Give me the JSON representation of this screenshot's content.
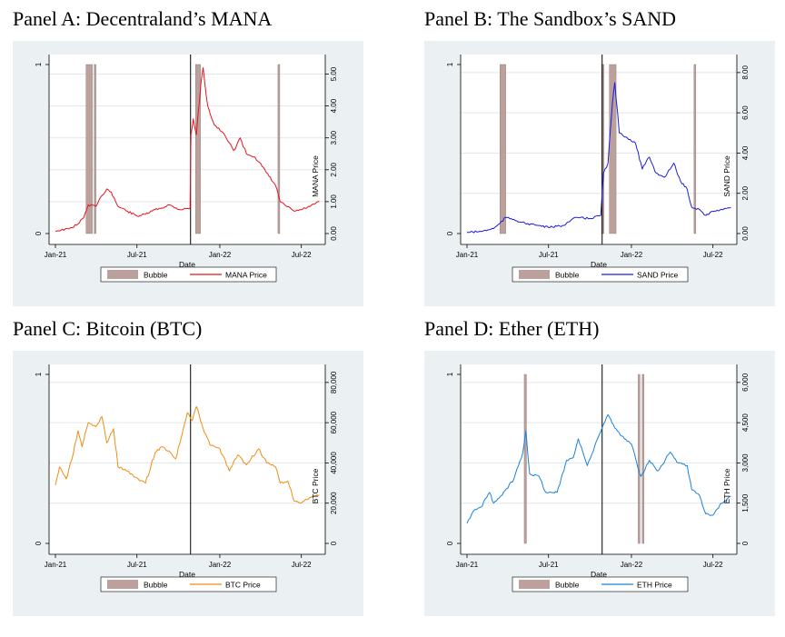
{
  "panels": [
    {
      "id": "A",
      "title": "Panel A: Decentraland’s MANA",
      "chart_data": {
        "type": "line",
        "xlabel": "Date",
        "x_ticks": [
          "Jan-21",
          "Jul-21",
          "Jan-22",
          "Jul-22"
        ],
        "x_range": [
          "2021-01-01",
          "2022-08-15"
        ],
        "left_axis": {
          "ticks": [
            "0",
            "1"
          ],
          "ylim": [
            0,
            1
          ]
        },
        "right_axis": {
          "label": "MANA Price",
          "ticks": [
            "0.00",
            "1.00",
            "2.00",
            "3.00",
            "4.00",
            "5.00"
          ],
          "ylim": [
            0,
            5.3
          ]
        },
        "series": [
          {
            "name": "MANA Price",
            "color": "#e8141c",
            "points": [
              [
                "2021-01-01",
                0.08
              ],
              [
                "2021-02-01",
                0.15
              ],
              [
                "2021-02-20",
                0.3
              ],
              [
                "2021-03-05",
                0.5
              ],
              [
                "2021-03-15",
                0.9
              ],
              [
                "2021-04-01",
                0.85
              ],
              [
                "2021-04-15",
                1.2
              ],
              [
                "2021-04-25",
                1.4
              ],
              [
                "2021-05-05",
                1.3
              ],
              [
                "2021-05-20",
                0.85
              ],
              [
                "2021-06-10",
                0.7
              ],
              [
                "2021-07-01",
                0.55
              ],
              [
                "2021-07-20",
                0.6
              ],
              [
                "2021-08-10",
                0.75
              ],
              [
                "2021-08-25",
                0.8
              ],
              [
                "2021-09-10",
                0.9
              ],
              [
                "2021-10-05",
                0.75
              ],
              [
                "2021-10-27",
                0.8
              ],
              [
                "2021-10-29",
                3.1
              ],
              [
                "2021-11-03",
                3.6
              ],
              [
                "2021-11-10",
                3.1
              ],
              [
                "2021-11-20",
                4.7
              ],
              [
                "2021-11-25",
                5.2
              ],
              [
                "2021-12-05",
                4.0
              ],
              [
                "2021-12-20",
                3.4
              ],
              [
                "2022-01-05",
                3.2
              ],
              [
                "2022-01-15",
                3.0
              ],
              [
                "2022-02-01",
                2.6
              ],
              [
                "2022-02-15",
                3.0
              ],
              [
                "2022-03-01",
                2.5
              ],
              [
                "2022-03-20",
                2.4
              ],
              [
                "2022-04-05",
                2.1
              ],
              [
                "2022-04-20",
                1.8
              ],
              [
                "2022-05-05",
                1.5
              ],
              [
                "2022-05-15",
                1.0
              ],
              [
                "2022-05-25",
                0.9
              ],
              [
                "2022-06-15",
                0.7
              ],
              [
                "2022-07-01",
                0.75
              ],
              [
                "2022-07-20",
                0.85
              ],
              [
                "2022-08-10",
                1.0
              ]
            ]
          }
        ],
        "bubbles": [
          [
            "2021-03-10",
            "2021-03-24"
          ],
          [
            "2021-03-28",
            "2021-03-30"
          ],
          [
            "2021-11-08",
            "2021-11-19"
          ],
          [
            "2022-05-10",
            "2022-05-14"
          ]
        ],
        "vline": "2021-10-28",
        "legend": [
          "Bubble",
          "MANA Price"
        ]
      }
    },
    {
      "id": "B",
      "title": "Panel B: The Sandbox’s SAND",
      "chart_data": {
        "type": "line",
        "xlabel": "Date",
        "x_ticks": [
          "Jan-21",
          "Jul-21",
          "Jan-22",
          "Jul-22"
        ],
        "x_range": [
          "2021-01-01",
          "2022-08-15"
        ],
        "left_axis": {
          "ticks": [
            "0",
            "1"
          ],
          "ylim": [
            0,
            1
          ]
        },
        "right_axis": {
          "label": "SAND Price",
          "ticks": [
            "0.00",
            "2.00",
            "4.00",
            "6.00",
            "8.00"
          ],
          "ylim": [
            0,
            8.4
          ]
        },
        "series": [
          {
            "name": "SAND Price",
            "color": "#1c1ce0",
            "points": [
              [
                "2021-01-01",
                0.06
              ],
              [
                "2021-02-01",
                0.1
              ],
              [
                "2021-03-01",
                0.25
              ],
              [
                "2021-03-15",
                0.5
              ],
              [
                "2021-03-28",
                0.8
              ],
              [
                "2021-04-15",
                0.7
              ],
              [
                "2021-05-10",
                0.5
              ],
              [
                "2021-06-10",
                0.4
              ],
              [
                "2021-07-01",
                0.3
              ],
              [
                "2021-08-01",
                0.4
              ],
              [
                "2021-09-01",
                0.8
              ],
              [
                "2021-10-01",
                0.75
              ],
              [
                "2021-10-25",
                0.9
              ],
              [
                "2021-10-31",
                3.0
              ],
              [
                "2021-11-10",
                3.5
              ],
              [
                "2021-11-20",
                6.5
              ],
              [
                "2021-11-25",
                7.5
              ],
              [
                "2021-12-05",
                5.0
              ],
              [
                "2021-12-20",
                4.8
              ],
              [
                "2022-01-10",
                4.5
              ],
              [
                "2022-01-25",
                3.2
              ],
              [
                "2022-02-10",
                3.8
              ],
              [
                "2022-02-25",
                3.0
              ],
              [
                "2022-03-15",
                2.8
              ],
              [
                "2022-03-28",
                3.2
              ],
              [
                "2022-04-05",
                3.5
              ],
              [
                "2022-04-20",
                2.6
              ],
              [
                "2022-05-05",
                2.2
              ],
              [
                "2022-05-15",
                1.3
              ],
              [
                "2022-06-01",
                1.2
              ],
              [
                "2022-06-15",
                0.9
              ],
              [
                "2022-07-01",
                1.1
              ],
              [
                "2022-07-20",
                1.2
              ],
              [
                "2022-08-10",
                1.3
              ]
            ]
          }
        ],
        "bubbles": [
          [
            "2021-03-15",
            "2021-03-28"
          ],
          [
            "2021-10-27",
            "2021-11-01"
          ],
          [
            "2021-11-13",
            "2021-11-28"
          ],
          [
            "2022-05-20",
            "2022-05-22"
          ]
        ],
        "vline": "2021-10-28",
        "legend": [
          "Bubble",
          "SAND Price"
        ]
      }
    },
    {
      "id": "C",
      "title": "Panel C: Bitcoin (BTC)",
      "chart_data": {
        "type": "line",
        "xlabel": "Date",
        "x_ticks": [
          "Jan-21",
          "Jul-21",
          "Jan-22",
          "Jul-22"
        ],
        "x_range": [
          "2021-01-01",
          "2022-08-15"
        ],
        "left_axis": {
          "ticks": [
            "0",
            "1"
          ],
          "ylim": [
            0,
            1
          ]
        },
        "right_axis": {
          "label": "BTC Price",
          "ticks": [
            "0",
            "20,000",
            "40,000",
            "60,000",
            "80,000"
          ],
          "ylim": [
            0,
            84000
          ]
        },
        "series": [
          {
            "name": "BTC Price",
            "color": "#f08c14",
            "points": [
              [
                "2021-01-01",
                29000
              ],
              [
                "2021-01-10",
                38000
              ],
              [
                "2021-01-25",
                32000
              ],
              [
                "2021-02-10",
                45000
              ],
              [
                "2021-02-20",
                56000
              ],
              [
                "2021-03-01",
                48000
              ],
              [
                "2021-03-15",
                60000
              ],
              [
                "2021-04-01",
                58000
              ],
              [
                "2021-04-14",
                63000
              ],
              [
                "2021-04-25",
                50000
              ],
              [
                "2021-05-10",
                57000
              ],
              [
                "2021-05-20",
                38000
              ],
              [
                "2021-06-10",
                36000
              ],
              [
                "2021-06-25",
                33000
              ],
              [
                "2021-07-20",
                30000
              ],
              [
                "2021-08-10",
                45000
              ],
              [
                "2021-08-25",
                48000
              ],
              [
                "2021-09-10",
                46000
              ],
              [
                "2021-09-25",
                42000
              ],
              [
                "2021-10-10",
                55000
              ],
              [
                "2021-10-21",
                65000
              ],
              [
                "2021-11-01",
                61000
              ],
              [
                "2021-11-10",
                68000
              ],
              [
                "2021-11-25",
                57000
              ],
              [
                "2021-12-10",
                49000
              ],
              [
                "2022-01-01",
                47000
              ],
              [
                "2022-01-22",
                36000
              ],
              [
                "2022-02-10",
                44000
              ],
              [
                "2022-03-01",
                39000
              ],
              [
                "2022-03-28",
                47000
              ],
              [
                "2022-04-15",
                40000
              ],
              [
                "2022-05-05",
                38000
              ],
              [
                "2022-05-15",
                30000
              ],
              [
                "2022-06-01",
                31000
              ],
              [
                "2022-06-15",
                21000
              ],
              [
                "2022-07-01",
                20000
              ],
              [
                "2022-07-20",
                23000
              ],
              [
                "2022-08-10",
                24000
              ]
            ]
          }
        ],
        "bubbles": [],
        "vline": "2021-10-28",
        "legend": [
          "Bubble",
          "BTC Price"
        ]
      }
    },
    {
      "id": "D",
      "title": "Panel D: Ether (ETH)",
      "chart_data": {
        "type": "line",
        "xlabel": "Date",
        "x_ticks": [
          "Jan-21",
          "Jul-21",
          "Jan-22",
          "Jul-22"
        ],
        "x_range": [
          "2021-01-01",
          "2022-08-15"
        ],
        "left_axis": {
          "ticks": [
            "0",
            "1"
          ],
          "ylim": [
            0,
            1
          ]
        },
        "right_axis": {
          "label": "ETH Price",
          "ticks": [
            "0",
            "1,500",
            "3,000",
            "4,500",
            "6,000"
          ],
          "ylim": [
            0,
            6300
          ]
        },
        "series": [
          {
            "name": "ETH Price",
            "color": "#1c82dc",
            "points": [
              [
                "2021-01-01",
                750
              ],
              [
                "2021-01-15",
                1200
              ],
              [
                "2021-02-01",
                1350
              ],
              [
                "2021-02-20",
                1900
              ],
              [
                "2021-03-01",
                1500
              ],
              [
                "2021-03-20",
                1800
              ],
              [
                "2021-04-15",
                2400
              ],
              [
                "2021-05-05",
                3400
              ],
              [
                "2021-05-12",
                4200
              ],
              [
                "2021-05-20",
                2600
              ],
              [
                "2021-06-10",
                2500
              ],
              [
                "2021-06-25",
                1900
              ],
              [
                "2021-07-20",
                1900
              ],
              [
                "2021-08-10",
                3100
              ],
              [
                "2021-08-25",
                3200
              ],
              [
                "2021-09-05",
                3900
              ],
              [
                "2021-09-25",
                2900
              ],
              [
                "2021-10-15",
                3800
              ],
              [
                "2021-10-28",
                4300
              ],
              [
                "2021-11-10",
                4800
              ],
              [
                "2021-11-25",
                4300
              ],
              [
                "2021-12-10",
                4000
              ],
              [
                "2022-01-01",
                3700
              ],
              [
                "2022-01-22",
                2500
              ],
              [
                "2022-02-10",
                3100
              ],
              [
                "2022-03-01",
                2700
              ],
              [
                "2022-03-28",
                3400
              ],
              [
                "2022-04-15",
                3000
              ],
              [
                "2022-05-05",
                2900
              ],
              [
                "2022-05-15",
                2000
              ],
              [
                "2022-06-01",
                1800
              ],
              [
                "2022-06-15",
                1100
              ],
              [
                "2022-07-01",
                1050
              ],
              [
                "2022-07-20",
                1500
              ],
              [
                "2022-08-10",
                1750
              ]
            ]
          }
        ],
        "bubbles": [
          [
            "2021-05-08",
            "2021-05-13"
          ],
          [
            "2022-01-16",
            "2022-01-17"
          ],
          [
            "2022-01-25",
            "2022-01-26"
          ]
        ],
        "vline": "2021-10-28",
        "legend": [
          "Bubble",
          "ETH Price"
        ]
      }
    }
  ],
  "colors": {
    "bubble": "#bca09c",
    "bubble_stroke": "#8c7470",
    "plot_bg": "#ebf0f3",
    "grid": "#dfe6ea"
  }
}
